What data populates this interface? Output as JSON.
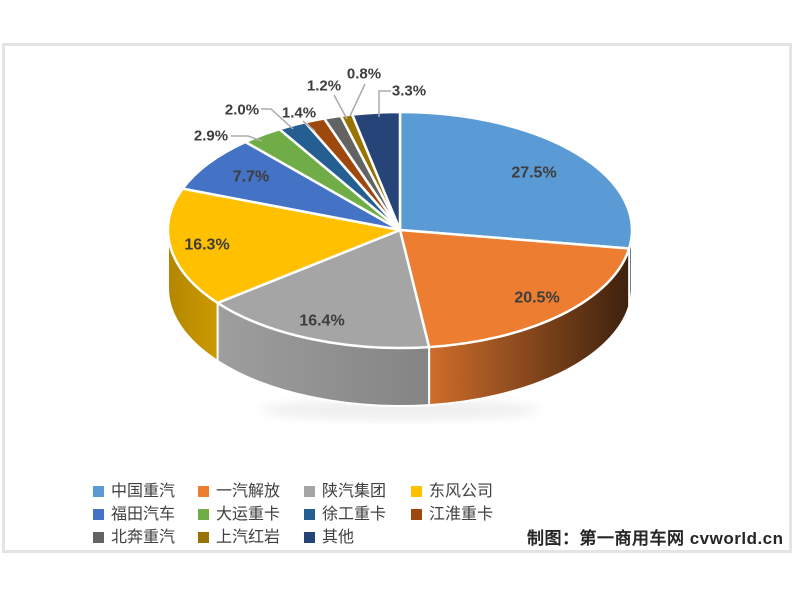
{
  "chart_data": {
    "type": "pie",
    "style": "3d-pie",
    "title": "",
    "unit": "%",
    "start_angle_deg": 0,
    "direction": "clockwise",
    "legend_position": "bottom-left",
    "slices": [
      {
        "label": "中国重汽",
        "value": 27.5,
        "display": "27.5%",
        "color": "#5B9BD5"
      },
      {
        "label": "一汽解放",
        "value": 20.5,
        "display": "20.5%",
        "color": "#ED7D31"
      },
      {
        "label": "陕汽集团",
        "value": 16.4,
        "display": "16.4%",
        "color": "#A5A5A5"
      },
      {
        "label": "东风公司",
        "value": 16.3,
        "display": "16.3%",
        "color": "#FFC000"
      },
      {
        "label": "福田汽车",
        "value": 7.7,
        "display": "7.7%",
        "color": "#4472C4"
      },
      {
        "label": "大运重卡",
        "value": 2.9,
        "display": "2.9%",
        "color": "#70AD47"
      },
      {
        "label": "徐工重卡",
        "value": 2.0,
        "display": "2.0%",
        "color": "#255E91"
      },
      {
        "label": "江淮重卡",
        "value": 1.4,
        "display": "1.4%",
        "color": "#9E480E"
      },
      {
        "label": "北奔重汽",
        "value": 1.2,
        "display": "1.2%",
        "color": "#636363"
      },
      {
        "label": "上汽红岩",
        "value": 0.8,
        "display": "0.8%",
        "color": "#997300"
      },
      {
        "label": "其他",
        "value": 3.3,
        "display": "3.3%",
        "color": "#264478"
      }
    ],
    "label_color": "#3D3D3D",
    "leader_line_color": "#ABABAB"
  },
  "attribution": {
    "text": "制图：第一商用车网 cvworld.cn"
  }
}
